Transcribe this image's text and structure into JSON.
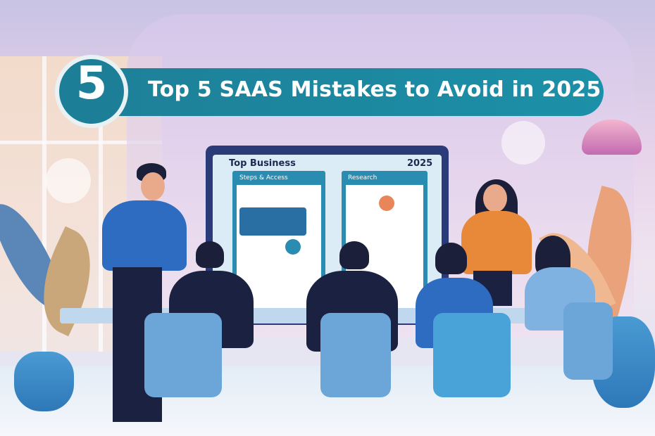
{
  "banner": {
    "number": "5",
    "title": "Top 5 SAAS Mistakes to Avoid in 2025",
    "color": "#1d7f97"
  },
  "screen": {
    "title": "Top Business",
    "year": "2025",
    "panel_left_label": "Steps & Access",
    "panel_right_label": "Research"
  }
}
